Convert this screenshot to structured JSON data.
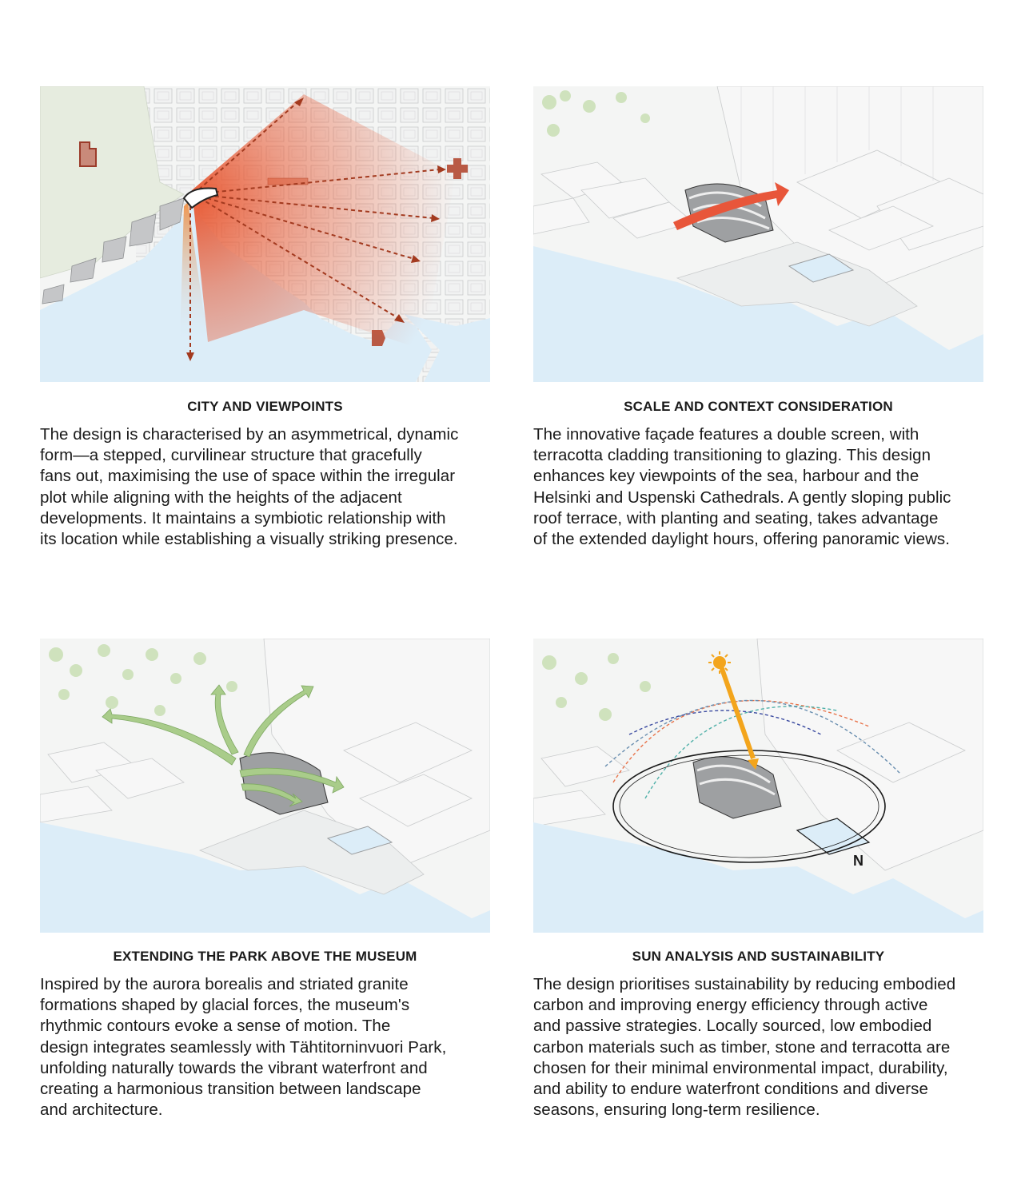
{
  "panels": [
    {
      "title": "CITY AND VIEWPOINTS",
      "lines": [
        "The design is characterised by an asymmetrical, dynamic",
        "form—a stepped, curvilinear structure that gracefully",
        "fans out, maximising the use of space within the irregular",
        "plot while aligning with the heights of the adjacent",
        "developments. It maintains a symbiotic relationship with",
        "its location while establishing a visually striking presence."
      ]
    },
    {
      "title": "SCALE AND CONTEXT CONSIDERATION",
      "lines": [
        "The innovative façade features a double screen, with",
        "terracotta cladding transitioning to glazing. This design",
        "enhances key viewpoints of the sea, harbour and the",
        "Helsinki and Uspenski Cathedrals. A gently sloping public",
        "roof terrace, with planting and seating, takes advantage",
        "of the extended daylight hours, offering panoramic views."
      ]
    },
    {
      "title": "EXTENDING THE PARK ABOVE THE MUSEUM",
      "lines": [
        "Inspired by the aurora borealis and striated granite",
        "formations shaped by glacial forces, the museum's",
        "rhythmic contours evoke a sense of motion. The",
        "design integrates seamlessly with Tähtitorninvuori Park,",
        "unfolding naturally towards the vibrant waterfront and",
        "creating a harmonious transition between landscape",
        "and architecture."
      ]
    },
    {
      "title": "SUN ANALYSIS AND SUSTAINABILITY",
      "lines": [
        "The design prioritises sustainability by reducing embodied",
        "carbon and improving energy efficiency through active",
        "and passive strategies. Locally sourced, low embodied",
        "carbon materials such as timber, stone and terracotta are",
        "chosen for their minimal environmental impact, durability,",
        "and ability to endure waterfront conditions and diverse",
        "seasons, ensuring long-term resilience."
      ]
    }
  ],
  "compass": {
    "north_label": "N"
  },
  "colors": {
    "water": "#dcedf8",
    "ground": "#f4f5f4",
    "park": "#e6ecdf",
    "building_line": "#c9cbcc",
    "accent_red": "#c23a1a",
    "cathedral": "#b95a45",
    "green_arrow": "#9cc47e",
    "sun": "#f3a51c"
  }
}
